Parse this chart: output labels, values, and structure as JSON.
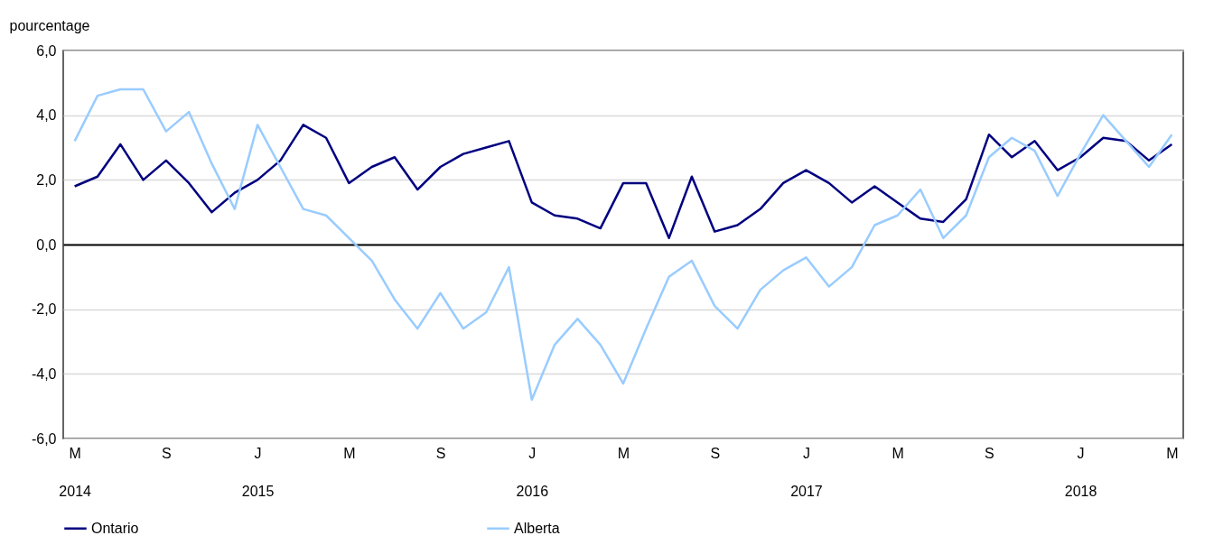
{
  "chart_data": {
    "type": "line",
    "ylabel": "pourcentage",
    "categories": [
      "M\n2014",
      null,
      null,
      null,
      "S",
      null,
      null,
      null,
      "J\n2015",
      null,
      null,
      null,
      "M",
      null,
      null,
      null,
      "S",
      null,
      null,
      null,
      "J\n2016",
      null,
      null,
      null,
      "M",
      null,
      null,
      null,
      "S",
      null,
      null,
      null,
      "J\n2017",
      null,
      null,
      null,
      "M",
      null,
      null,
      null,
      "S",
      null,
      null,
      null,
      "J\n2018",
      null,
      null,
      null,
      "M"
    ],
    "series": [
      {
        "name": "Ontario",
        "color": "#000080",
        "values": [
          1.8,
          2.1,
          3.1,
          2.0,
          2.6,
          1.9,
          1.0,
          1.6,
          2.0,
          2.6,
          3.7,
          3.3,
          1.9,
          2.4,
          2.7,
          1.7,
          2.4,
          2.8,
          3.0,
          3.2,
          1.3,
          0.9,
          0.8,
          0.5,
          1.9,
          1.9,
          0.2,
          2.1,
          0.4,
          0.6,
          1.1,
          1.9,
          2.3,
          1.9,
          1.3,
          1.8,
          1.3,
          0.8,
          0.7,
          1.4,
          3.4,
          2.7,
          3.2,
          2.3,
          2.7,
          3.3,
          3.2,
          2.6,
          3.1
        ]
      },
      {
        "name": "Alberta",
        "color": "#99ccff",
        "values": [
          3.2,
          4.6,
          4.8,
          4.8,
          3.5,
          4.1,
          2.5,
          1.1,
          3.7,
          2.4,
          1.1,
          0.9,
          0.2,
          -0.5,
          -1.7,
          -2.6,
          -1.5,
          -2.6,
          -2.1,
          -0.7,
          -4.8,
          -3.1,
          -2.3,
          -3.1,
          -4.3,
          -2.6,
          -1.0,
          -0.5,
          -1.9,
          -2.6,
          -1.4,
          -0.8,
          -0.4,
          -1.3,
          -0.7,
          0.6,
          0.9,
          1.7,
          0.2,
          0.9,
          2.7,
          3.3,
          2.9,
          1.5,
          2.8,
          4.0,
          3.2,
          2.4,
          3.4
        ]
      }
    ],
    "ylim": [
      -6,
      6
    ],
    "yticks": [
      {
        "value": -6,
        "label": "-6,0"
      },
      {
        "value": -4,
        "label": "-4,0"
      },
      {
        "value": -2,
        "label": "-2,0"
      },
      {
        "value": 0,
        "label": "0,0"
      },
      {
        "value": 2,
        "label": "2,0"
      },
      {
        "value": 4,
        "label": "4,0"
      },
      {
        "value": 6,
        "label": "6,0"
      }
    ],
    "grid": "y",
    "legend": "bottom",
    "line_style": "solid",
    "marker": "none"
  }
}
